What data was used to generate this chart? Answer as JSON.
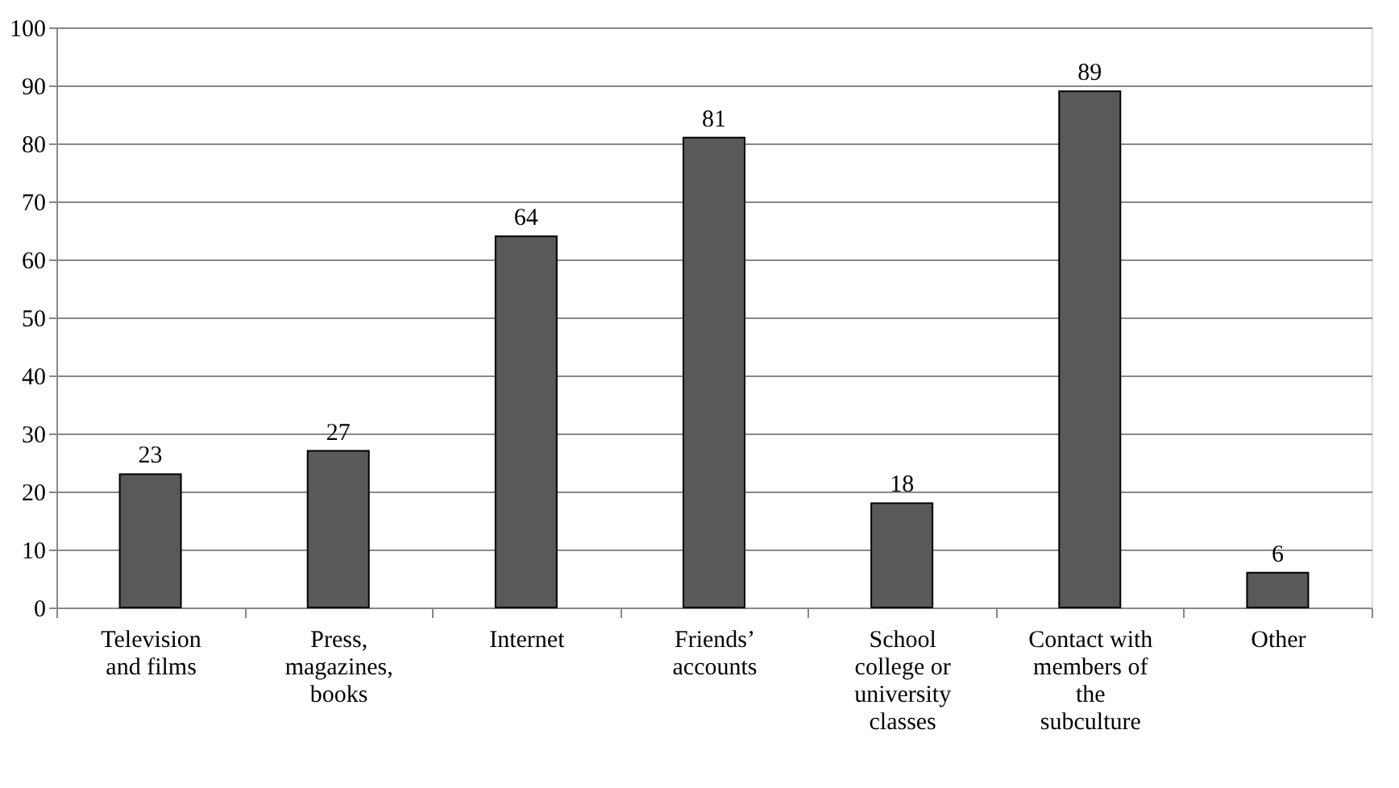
{
  "chart_data": {
    "type": "bar",
    "categories": [
      "Television and films",
      "Press, magazines, books",
      "Internet",
      "Friends’ accounts",
      "School college or university classes",
      "Contact with members of the subculture",
      "Other"
    ],
    "values": [
      23,
      27,
      64,
      81,
      18,
      89,
      6
    ],
    "color": "#595959",
    "ylim": [
      0,
      100
    ],
    "yticks": [
      0,
      10,
      20,
      30,
      40,
      50,
      60,
      70,
      80,
      90,
      100
    ],
    "grid": "y",
    "data_labels": true
  }
}
